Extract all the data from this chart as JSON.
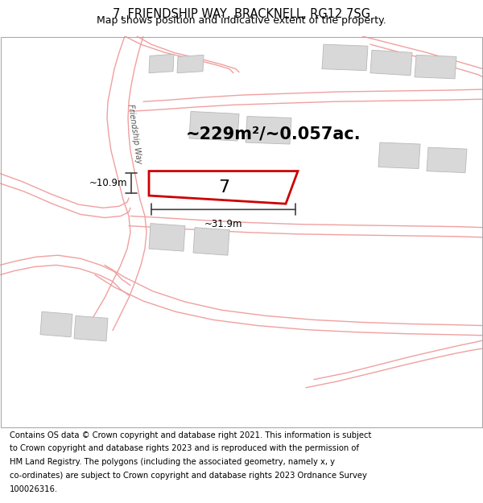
{
  "title": "7, FRIENDSHIP WAY, BRACKNELL, RG12 7SG",
  "subtitle": "Map shows position and indicative extent of the property.",
  "area_text": "~229m²/~0.057ac.",
  "plot_number": "7",
  "dim_width": "~31.9m",
  "dim_height": "~10.9m",
  "road_label": "Friendship Way",
  "footer": "Contains OS data © Crown copyright and database right 2021. This information is subject to Crown copyright and database rights 2023 and is reproduced with the permission of HM Land Registry. The polygons (including the associated geometry, namely x, y co-ordinates) are subject to Crown copyright and database rights 2023 Ordnance Survey 100026316.",
  "map_bg": "#ffffff",
  "plot_color": "#cc0000",
  "road_lines_color": "#f0a0a0",
  "building_color": "#d8d8d8",
  "building_edge_color": "#b8b8b8",
  "dim_color": "#404040",
  "title_fontsize": 10.5,
  "subtitle_fontsize": 9,
  "footer_fontsize": 7.2,
  "area_fontsize": 15,
  "plot_label_fontsize": 16,
  "dim_fontsize": 8.5
}
